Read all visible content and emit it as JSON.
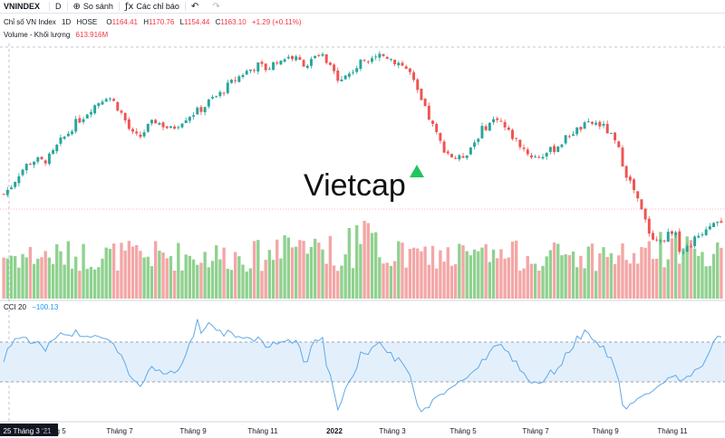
{
  "toolbar": {
    "symbol": "VNINDEX",
    "interval": "D",
    "compare_label": "So sánh",
    "indicators_label": "Các chỉ báo",
    "undo_icon": "undo-icon",
    "redo_icon": "redo-icon"
  },
  "legend": {
    "name": "Chỉ số VN Index",
    "interval": "1D",
    "exchange": "HOSE",
    "o_label": "O",
    "o_value": "1164.41",
    "h_label": "H",
    "h_value": "1170.76",
    "l_label": "L",
    "l_value": "1154.44",
    "c_label": "C",
    "c_value": "1163.10",
    "change": "+1.29 (+0.11%)",
    "volume_label": "Volume - Khối lượng",
    "volume_value": "613.916M",
    "cci_label": "CCI 20",
    "cci_value": "−100.13"
  },
  "watermark": {
    "text": "Vietcap",
    "accent_color": "#22c55e"
  },
  "colors": {
    "up": "#26a69a",
    "down": "#ef5350",
    "up_volume": "#8fd18f",
    "down_volume": "#f4a6a6",
    "cci_line": "#5fa8e8",
    "cci_band": "#e3f0fc",
    "crosshair": "#f7a6a6"
  },
  "chart_data": [
    {
      "type": "candlestick",
      "title": "Chỉ số VN Index 1D HOSE",
      "x_ticks": [
        "25 Tháng 3 '21",
        "Tháng 5",
        "Tháng 7",
        "Tháng 9",
        "Tháng 11",
        "2022",
        "Tháng 3",
        "Tháng 5",
        "Tháng 7",
        "Tháng 9",
        "Tháng 11"
      ],
      "series": [
        {
          "name": "VNINDEX",
          "close_path": [
            1180,
            1200,
            1230,
            1250,
            1260,
            1255,
            1270,
            1300,
            1320,
            1345,
            1360,
            1380,
            1395,
            1410,
            1390,
            1360,
            1320,
            1310,
            1335,
            1350,
            1340,
            1330,
            1345,
            1360,
            1370,
            1380,
            1400,
            1410,
            1430,
            1445,
            1460,
            1470,
            1480,
            1470,
            1485,
            1495,
            1500,
            1490,
            1480,
            1495,
            1500,
            1470,
            1450,
            1455,
            1470,
            1490,
            1500,
            1505,
            1500,
            1490,
            1480,
            1460,
            1410,
            1370,
            1330,
            1290,
            1270,
            1260,
            1275,
            1300,
            1330,
            1345,
            1360,
            1330,
            1310,
            1290,
            1270,
            1265,
            1275,
            1285,
            1300,
            1320,
            1330,
            1340,
            1345,
            1340,
            1320,
            1290,
            1230,
            1190,
            1140,
            1090,
            1070,
            1080,
            1100,
            1040,
            1060,
            1080,
            1100,
            1120,
            1110
          ],
          "last": {
            "open": 1164.41,
            "high": 1170.76,
            "low": 1154.44,
            "close": 1163.1,
            "change": 1.29,
            "change_pct": 0.11
          }
        }
      ]
    },
    {
      "type": "bar",
      "title": "Volume - Khối lượng",
      "series": [
        {
          "name": "Volume",
          "last": "613.916M"
        }
      ]
    },
    {
      "type": "line",
      "title": "CCI 20",
      "band": [
        -100,
        100
      ],
      "series": [
        {
          "name": "CCI 20",
          "last": -100.13
        }
      ]
    }
  ]
}
